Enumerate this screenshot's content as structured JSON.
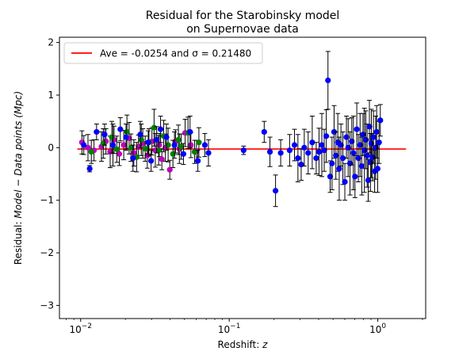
{
  "chart_data": {
    "type": "scatter",
    "title": [
      "Residual for the Starobinsky model",
      "on Supernovae data"
    ],
    "xlabel": {
      "prefix": "Redshift: ",
      "italic": "z"
    },
    "ylabel": {
      "prefix": "Residual: ",
      "italic": "Model − Data points (Mpc)"
    },
    "x_scale": "log",
    "xlim": [
      0.0072,
      2.1
    ],
    "ylim": [
      -3.25,
      2.1
    ],
    "x_ticks": [
      {
        "value": 0.01,
        "base": "10",
        "exp": "−2"
      },
      {
        "value": 0.1,
        "base": "10",
        "exp": "−1"
      },
      {
        "value": 1,
        "base": "10",
        "exp": "0"
      }
    ],
    "y_ticks": [
      {
        "value": 2,
        "label": "2"
      },
      {
        "value": 1,
        "label": "1"
      },
      {
        "value": 0,
        "label": "0"
      },
      {
        "value": -1,
        "label": "−1"
      },
      {
        "value": -2,
        "label": "−2"
      },
      {
        "value": -3,
        "label": "−3"
      }
    ],
    "grid": false,
    "legend": {
      "placement": "top-left",
      "text": "Ave = -0.0254 and σ = 0.21480",
      "line_color": "#ff0000"
    },
    "average_line": {
      "value": -0.0254,
      "x_range": [
        0.0095,
        1.55
      ],
      "color": "#ff0000"
    },
    "colors": {
      "blue": "#0000ff",
      "green": "#008000",
      "magenta": "#bf00bf",
      "errorbar": "#000000"
    },
    "series": [
      {
        "color": "magenta",
        "points": [
          [
            0.0102,
            0.1,
            0.22
          ],
          [
            0.0112,
            0.0,
            0.25
          ],
          [
            0.0123,
            -0.05,
            0.2
          ],
          [
            0.0138,
            0.02,
            0.28
          ],
          [
            0.0148,
            0.12,
            0.24
          ],
          [
            0.0158,
            -0.08,
            0.3
          ],
          [
            0.0168,
            0.15,
            0.26
          ],
          [
            0.0182,
            -0.12,
            0.22
          ],
          [
            0.0195,
            0.05,
            0.28
          ],
          [
            0.0212,
            0.18,
            0.3
          ],
          [
            0.0228,
            -0.1,
            0.25
          ],
          [
            0.0245,
            0.02,
            0.22
          ],
          [
            0.0262,
            0.08,
            0.28
          ],
          [
            0.0281,
            -0.15,
            0.24
          ],
          [
            0.0302,
            0.12,
            0.26
          ],
          [
            0.0318,
            -0.05,
            0.32
          ],
          [
            0.0338,
            0.05,
            0.22
          ],
          [
            0.0352,
            -0.22,
            0.2
          ],
          [
            0.0372,
            0.0,
            0.26
          ],
          [
            0.0398,
            -0.42,
            0.18
          ],
          [
            0.0435,
            0.12,
            0.22
          ],
          [
            0.0462,
            -0.02,
            0.28
          ],
          [
            0.0505,
            0.28,
            0.26
          ],
          [
            0.0552,
            0.05,
            0.24
          ],
          [
            0.0602,
            -0.06,
            0.2
          ]
        ]
      },
      {
        "color": "green",
        "points": [
          [
            0.0118,
            -0.08,
            0.22
          ],
          [
            0.0142,
            0.08,
            0.28
          ],
          [
            0.0162,
            0.2,
            0.3
          ],
          [
            0.0175,
            -0.03,
            0.25
          ],
          [
            0.0205,
            0.3,
            0.32
          ],
          [
            0.0218,
            0.0,
            0.26
          ],
          [
            0.0238,
            -0.18,
            0.28
          ],
          [
            0.0256,
            0.15,
            0.3
          ],
          [
            0.0272,
            -0.02,
            0.24
          ],
          [
            0.0288,
            0.1,
            0.26
          ],
          [
            0.0312,
            0.38,
            0.35
          ],
          [
            0.0335,
            -0.05,
            0.28
          ],
          [
            0.0362,
            0.22,
            0.3
          ],
          [
            0.0388,
            0.05,
            0.32
          ],
          [
            0.0418,
            -0.12,
            0.26
          ],
          [
            0.0455,
            0.15,
            0.28
          ],
          [
            0.0475,
            0.02,
            0.24
          ],
          [
            0.0528,
            0.28,
            0.3
          ],
          [
            0.0585,
            -0.08,
            0.22
          ],
          [
            0.0625,
            0.1,
            0.28
          ]
        ]
      },
      {
        "color": "blue",
        "points": [
          [
            0.0105,
            0.05,
            0.18
          ],
          [
            0.0115,
            -0.4,
            0.06
          ],
          [
            0.0128,
            0.3,
            0.15
          ],
          [
            0.0145,
            0.25,
            0.2
          ],
          [
            0.0165,
            0.05,
            0.4
          ],
          [
            0.0185,
            0.35,
            0.22
          ],
          [
            0.0202,
            0.2,
            0.25
          ],
          [
            0.0225,
            -0.2,
            0.25
          ],
          [
            0.0252,
            0.25,
            0.25
          ],
          [
            0.0285,
            0.1,
            0.22
          ],
          [
            0.0298,
            -0.25,
            0.2
          ],
          [
            0.0325,
            0.15,
            0.25
          ],
          [
            0.0345,
            0.35,
            0.25
          ],
          [
            0.0378,
            0.2,
            0.25
          ],
          [
            0.0428,
            0.05,
            0.25
          ],
          [
            0.0492,
            -0.12,
            0.2
          ],
          [
            0.0545,
            0.3,
            0.3
          ],
          [
            0.0615,
            -0.25,
            0.2
          ],
          [
            0.0685,
            0.05,
            0.22
          ],
          [
            0.0725,
            -0.1,
            0.25
          ],
          [
            0.125,
            -0.05,
            0.08
          ],
          [
            0.172,
            0.3,
            0.2
          ],
          [
            0.188,
            -0.08,
            0.28
          ],
          [
            0.205,
            -0.82,
            0.3
          ],
          [
            0.222,
            -0.1,
            0.25
          ],
          [
            0.255,
            -0.05,
            0.3
          ],
          [
            0.275,
            0.05,
            0.3
          ],
          [
            0.29,
            -0.2,
            0.45
          ],
          [
            0.305,
            -0.32,
            0.3
          ],
          [
            0.32,
            0.0,
            0.35
          ],
          [
            0.34,
            -0.1,
            0.4
          ],
          [
            0.362,
            0.1,
            0.5
          ],
          [
            0.385,
            -0.2,
            0.3
          ],
          [
            0.402,
            -0.08,
            0.45
          ],
          [
            0.42,
            0.05,
            0.6
          ],
          [
            0.436,
            -0.05,
            0.4
          ],
          [
            0.45,
            0.22,
            0.5
          ],
          [
            0.462,
            1.28,
            0.55
          ],
          [
            0.478,
            -0.55,
            0.3
          ],
          [
            0.492,
            -0.3,
            0.5
          ],
          [
            0.508,
            0.3,
            0.5
          ],
          [
            0.522,
            -0.15,
            0.45
          ],
          [
            0.538,
            0.1,
            0.55
          ],
          [
            0.55,
            -0.4,
            0.6
          ],
          [
            0.565,
            0.05,
            0.4
          ],
          [
            0.582,
            -0.2,
            0.5
          ],
          [
            0.6,
            -0.65,
            0.35
          ],
          [
            0.615,
            0.2,
            0.4
          ],
          [
            0.632,
            0.0,
            0.55
          ],
          [
            0.65,
            -0.3,
            0.6
          ],
          [
            0.668,
            0.12,
            0.45
          ],
          [
            0.685,
            -0.1,
            0.7
          ],
          [
            0.702,
            -0.55,
            0.4
          ],
          [
            0.722,
            0.35,
            0.5
          ],
          [
            0.74,
            -0.2,
            0.45
          ],
          [
            0.76,
            0.05,
            0.6
          ],
          [
            0.78,
            -0.35,
            0.55
          ],
          [
            0.795,
            0.25,
            0.4
          ],
          [
            0.812,
            -0.05,
            0.8
          ],
          [
            0.83,
            0.15,
            0.55
          ],
          [
            0.848,
            -0.15,
            0.6
          ],
          [
            0.862,
            -0.62,
            0.4
          ],
          [
            0.878,
            0.4,
            0.5
          ],
          [
            0.892,
            -0.28,
            0.55
          ],
          [
            0.905,
            0.08,
            0.65
          ],
          [
            0.92,
            -0.18,
            0.45
          ],
          [
            0.935,
            0.2,
            0.5
          ],
          [
            0.952,
            -0.45,
            0.4
          ],
          [
            0.968,
            0.0,
            0.6
          ],
          [
            0.982,
            0.3,
            0.5
          ],
          [
            0.998,
            -0.4,
            0.45
          ],
          [
            1.02,
            0.1,
            0.4
          ],
          [
            1.04,
            0.52,
            0.3
          ]
        ]
      }
    ]
  }
}
